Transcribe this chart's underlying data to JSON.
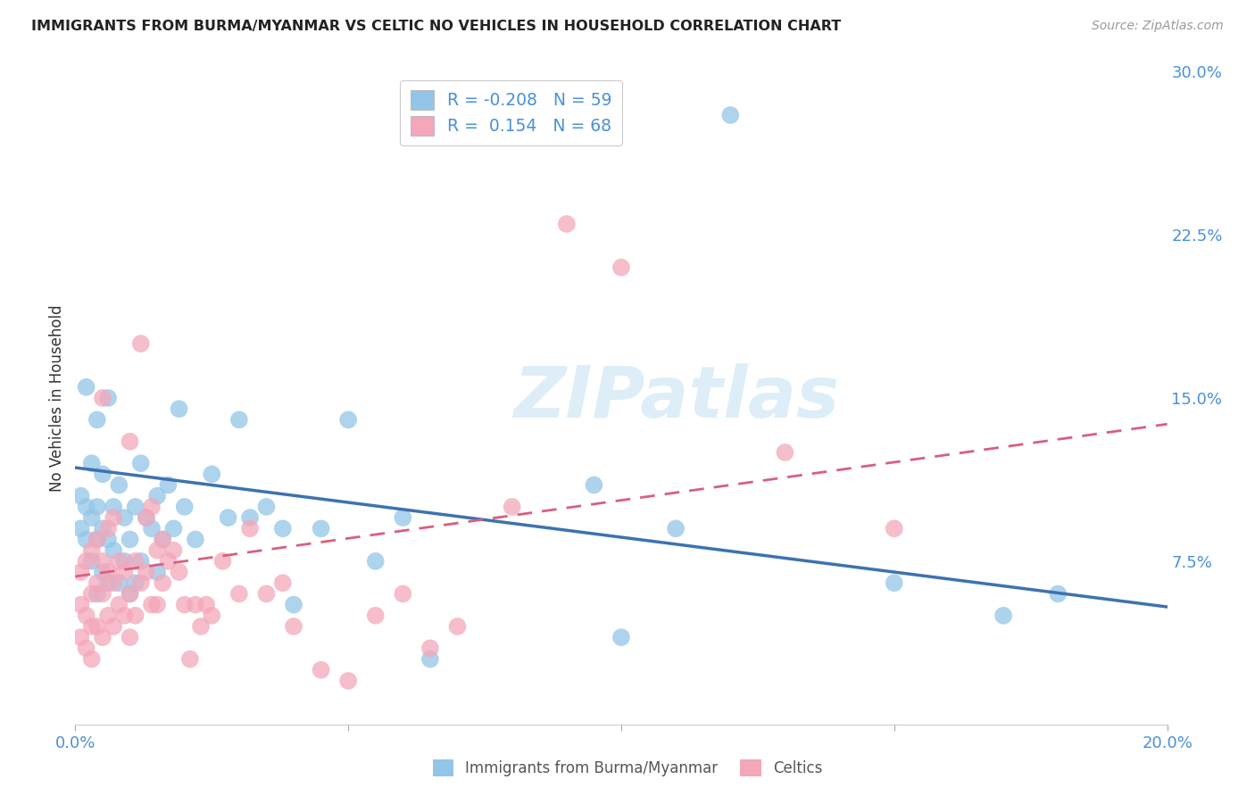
{
  "title": "IMMIGRANTS FROM BURMA/MYANMAR VS CELTIC NO VEHICLES IN HOUSEHOLD CORRELATION CHART",
  "source": "Source: ZipAtlas.com",
  "ylabel": "No Vehicles in Household",
  "x_min": 0.0,
  "x_max": 0.2,
  "y_min": 0.0,
  "y_max": 0.3,
  "x_ticks": [
    0.0,
    0.05,
    0.1,
    0.15,
    0.2
  ],
  "x_tick_labels": [
    "0.0%",
    "",
    "",
    "",
    "20.0%"
  ],
  "y_ticks_right": [
    0.0,
    0.075,
    0.15,
    0.225,
    0.3
  ],
  "y_tick_labels_right": [
    "",
    "7.5%",
    "15.0%",
    "22.5%",
    "30.0%"
  ],
  "series1_name": "Immigrants from Burma/Myanmar",
  "series1_color": "#93c5e8",
  "series1_line_color": "#3d72b0",
  "series1_R": -0.208,
  "series1_N": 59,
  "series2_name": "Celtics",
  "series2_color": "#f4a7b9",
  "series2_line_color": "#d95f7f",
  "series2_R": 0.154,
  "series2_N": 68,
  "watermark": "ZIPatlas",
  "background_color": "#ffffff",
  "grid_color": "#cccccc",
  "series1_line_intercept": 0.118,
  "series1_line_slope": -0.32,
  "series2_line_intercept": 0.068,
  "series2_line_slope": 0.35,
  "series1_x": [
    0.001,
    0.001,
    0.002,
    0.002,
    0.002,
    0.003,
    0.003,
    0.003,
    0.004,
    0.004,
    0.004,
    0.004,
    0.005,
    0.005,
    0.005,
    0.006,
    0.006,
    0.006,
    0.007,
    0.007,
    0.008,
    0.008,
    0.009,
    0.009,
    0.01,
    0.01,
    0.011,
    0.011,
    0.012,
    0.012,
    0.013,
    0.014,
    0.015,
    0.015,
    0.016,
    0.017,
    0.018,
    0.019,
    0.02,
    0.022,
    0.025,
    0.028,
    0.03,
    0.032,
    0.035,
    0.038,
    0.04,
    0.045,
    0.05,
    0.055,
    0.06,
    0.065,
    0.095,
    0.1,
    0.11,
    0.12,
    0.15,
    0.17,
    0.18
  ],
  "series1_y": [
    0.09,
    0.105,
    0.085,
    0.1,
    0.155,
    0.075,
    0.095,
    0.12,
    0.06,
    0.085,
    0.1,
    0.14,
    0.07,
    0.09,
    0.115,
    0.065,
    0.085,
    0.15,
    0.08,
    0.1,
    0.065,
    0.11,
    0.075,
    0.095,
    0.06,
    0.085,
    0.065,
    0.1,
    0.075,
    0.12,
    0.095,
    0.09,
    0.07,
    0.105,
    0.085,
    0.11,
    0.09,
    0.145,
    0.1,
    0.085,
    0.115,
    0.095,
    0.14,
    0.095,
    0.1,
    0.09,
    0.055,
    0.09,
    0.14,
    0.075,
    0.095,
    0.03,
    0.11,
    0.04,
    0.09,
    0.28,
    0.065,
    0.05,
    0.06
  ],
  "series2_x": [
    0.001,
    0.001,
    0.001,
    0.002,
    0.002,
    0.002,
    0.003,
    0.003,
    0.003,
    0.003,
    0.004,
    0.004,
    0.004,
    0.005,
    0.005,
    0.005,
    0.005,
    0.006,
    0.006,
    0.006,
    0.007,
    0.007,
    0.007,
    0.008,
    0.008,
    0.009,
    0.009,
    0.01,
    0.01,
    0.01,
    0.011,
    0.011,
    0.012,
    0.012,
    0.013,
    0.013,
    0.014,
    0.014,
    0.015,
    0.015,
    0.016,
    0.016,
    0.017,
    0.018,
    0.019,
    0.02,
    0.021,
    0.022,
    0.023,
    0.024,
    0.025,
    0.027,
    0.03,
    0.032,
    0.035,
    0.038,
    0.04,
    0.045,
    0.05,
    0.055,
    0.06,
    0.065,
    0.07,
    0.08,
    0.09,
    0.1,
    0.13,
    0.15
  ],
  "series2_y": [
    0.04,
    0.055,
    0.07,
    0.035,
    0.05,
    0.075,
    0.03,
    0.045,
    0.06,
    0.08,
    0.045,
    0.065,
    0.085,
    0.04,
    0.06,
    0.075,
    0.15,
    0.05,
    0.07,
    0.09,
    0.045,
    0.065,
    0.095,
    0.055,
    0.075,
    0.05,
    0.07,
    0.04,
    0.06,
    0.13,
    0.05,
    0.075,
    0.065,
    0.175,
    0.07,
    0.095,
    0.055,
    0.1,
    0.055,
    0.08,
    0.065,
    0.085,
    0.075,
    0.08,
    0.07,
    0.055,
    0.03,
    0.055,
    0.045,
    0.055,
    0.05,
    0.075,
    0.06,
    0.09,
    0.06,
    0.065,
    0.045,
    0.025,
    0.02,
    0.05,
    0.06,
    0.035,
    0.045,
    0.1,
    0.23,
    0.21,
    0.125,
    0.09
  ]
}
